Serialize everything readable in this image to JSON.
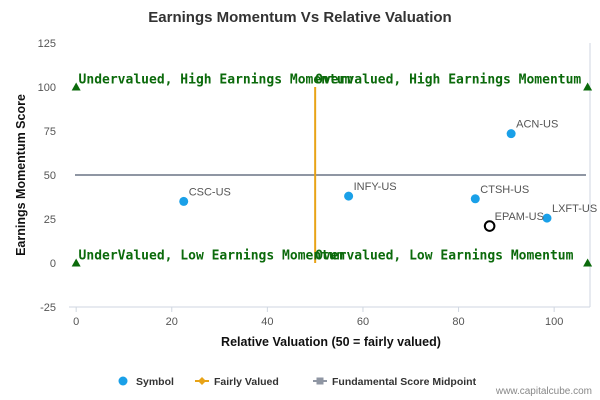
{
  "chart_data": {
    "type": "scatter",
    "title": "Earnings Momentum Vs Relative Valuation",
    "xlabel": "Relative Valuation (50 = fairly valued)",
    "ylabel": "Earnings Momentum Score",
    "xlim": [
      -1.5,
      107.5
    ],
    "ylim": [
      -25,
      125
    ],
    "x_ticks": [
      0,
      20,
      40,
      60,
      80,
      100
    ],
    "y_ticks": [
      -25,
      0,
      25,
      50,
      75,
      100,
      125
    ],
    "points": [
      {
        "label": "CSC-US",
        "x": 22.5,
        "y": 35,
        "highlight": false
      },
      {
        "label": "INFY-US",
        "x": 57,
        "y": 38,
        "highlight": false
      },
      {
        "label": "CTSH-US",
        "x": 83.5,
        "y": 36.5,
        "highlight": false
      },
      {
        "label": "ACN-US",
        "x": 91,
        "y": 73.5,
        "highlight": false
      },
      {
        "label": "LXFT-US",
        "x": 98.5,
        "y": 25.5,
        "highlight": false
      },
      {
        "label": "EPAM-US",
        "x": 86.5,
        "y": 21,
        "highlight": true
      }
    ],
    "fairly_valued_line": {
      "x": 50,
      "y_range": [
        0,
        100
      ]
    },
    "midpoint_line": {
      "y": 50
    },
    "quadrant_markers": [
      {
        "x": 0,
        "y": 100
      },
      {
        "x": 107,
        "y": 100
      },
      {
        "x": 0,
        "y": 0
      },
      {
        "x": 107,
        "y": 0
      }
    ],
    "quadrant_labels": [
      {
        "text": "Undervalued, High Earnings Momentum",
        "x": 0.5,
        "y": 102
      },
      {
        "text": "Overvalued, High Earnings Momentum",
        "x": 50,
        "y": 102
      },
      {
        "text": "UnderValued, Low Earnings Momentum",
        "x": 0.5,
        "y": 2
      },
      {
        "text": "Overvalued, Low Earnings Momentum",
        "x": 50,
        "y": 2
      }
    ],
    "legend": {
      "placement": "bottom",
      "items": [
        {
          "name": "Symbol",
          "kind": "dot"
        },
        {
          "name": "Fairly Valued",
          "kind": "line-diamond"
        },
        {
          "name": "Fundamental Score Midpoint",
          "kind": "line-square"
        }
      ]
    },
    "colors": {
      "symbol": "#1aa0e8",
      "fairly_valued": "#e8a317",
      "midpoint": "#8f96a3",
      "quadrant_text": "#0b6a0b",
      "marker": "#0b6a0b"
    }
  },
  "credit": "www.capitalcube.com"
}
